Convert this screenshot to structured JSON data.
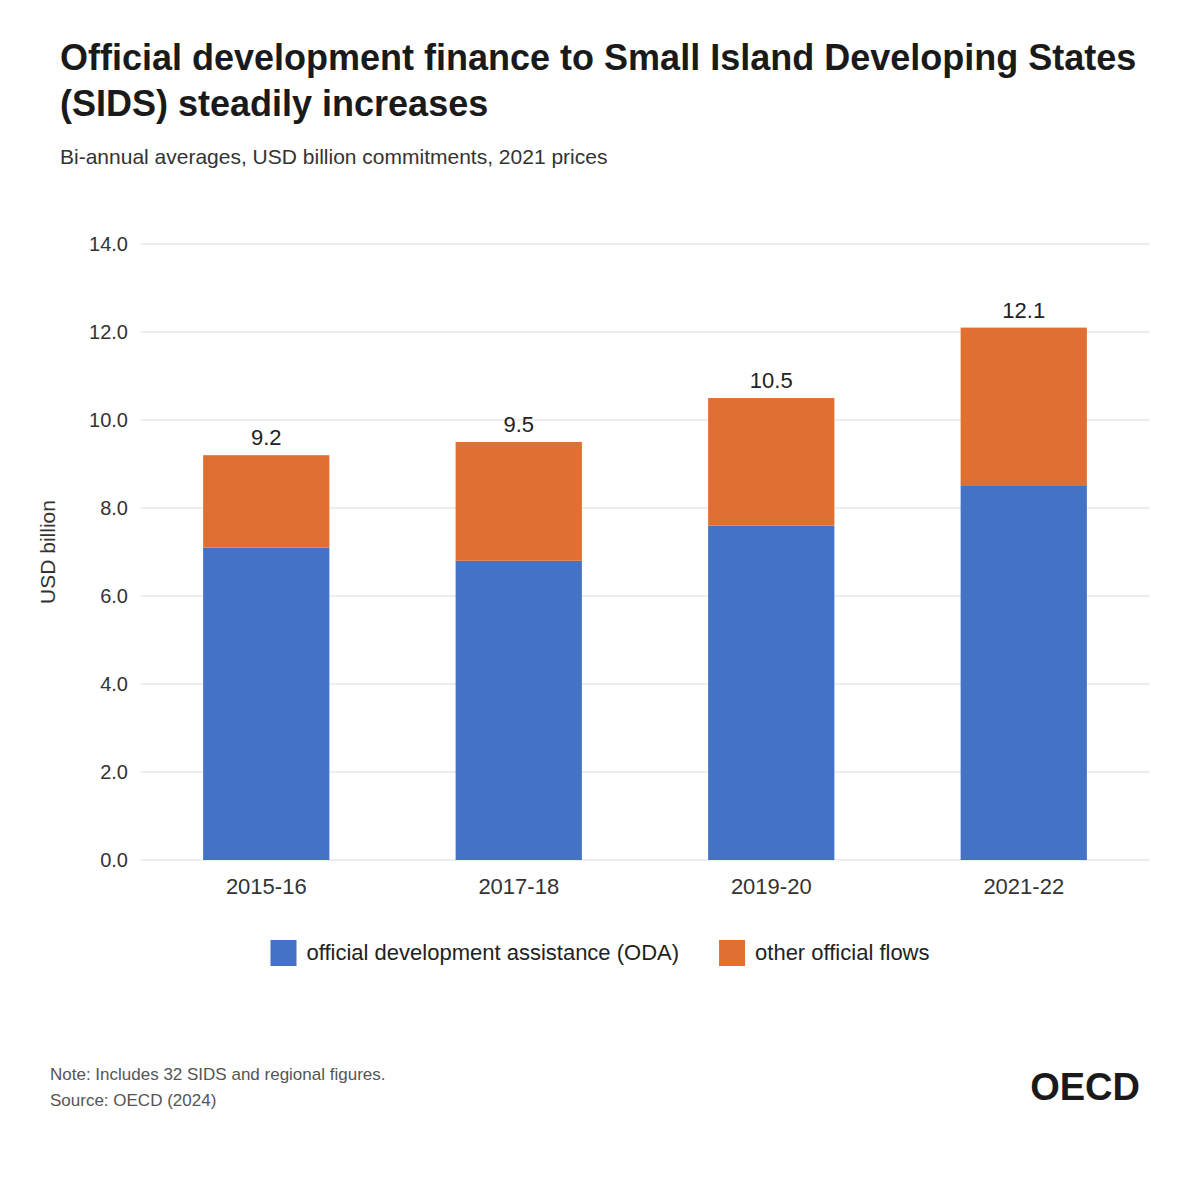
{
  "chart_data": {
    "type": "bar",
    "stacked": true,
    "title": "Official development finance to Small Island Developing States (SIDS) steadily increases",
    "subtitle": "Bi-annual averages, USD billion commitments, 2021 prices",
    "categories": [
      "2015-16",
      "2017-18",
      "2019-20",
      "2021-22"
    ],
    "series": [
      {
        "name": "official development assistance (ODA)",
        "color": "#4472C4",
        "values": [
          7.1,
          6.8,
          7.6,
          8.5
        ]
      },
      {
        "name": "other official flows",
        "color": "#E07032",
        "values": [
          2.1,
          2.7,
          2.9,
          3.6
        ]
      }
    ],
    "totals": [
      9.2,
      9.5,
      10.5,
      12.1
    ],
    "ylabel": "USD billion",
    "ylim": [
      0,
      14.0
    ],
    "yticks": [
      {
        "value": 0.0,
        "label": "0.0"
      },
      {
        "value": 2.0,
        "label": "2.0"
      },
      {
        "value": 4.0,
        "label": "4.0"
      },
      {
        "value": 6.0,
        "label": "6.0"
      },
      {
        "value": 8.0,
        "label": "8.0"
      },
      {
        "value": 10.0,
        "label": "10.0"
      },
      {
        "value": 12.0,
        "label": "12.0"
      },
      {
        "value": 14.0,
        "label": "14.0"
      }
    ],
    "grid": true,
    "legend": "bottom",
    "notes": [
      "Note: Includes 32 SIDS and regional figures.",
      "Source: OECD (2024)"
    ],
    "annotations": [
      "OECD"
    ]
  }
}
